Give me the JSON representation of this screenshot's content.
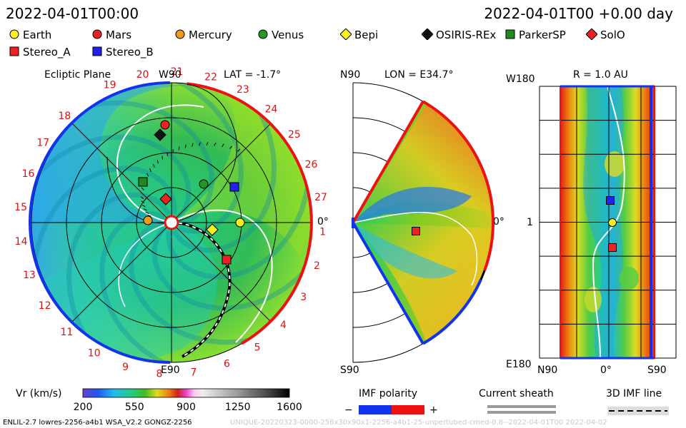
{
  "header": {
    "left_time": "2022-04-01T00:00",
    "right_time": "2022-04-01T00 +0.00 day"
  },
  "legend": {
    "items": [
      {
        "label": "Earth",
        "shape": "circle",
        "color": "#ffee22"
      },
      {
        "label": "Mars",
        "shape": "circle",
        "color": "#ee2222"
      },
      {
        "label": "Mercury",
        "shape": "circle",
        "color": "#ee9922"
      },
      {
        "label": "Venus",
        "shape": "circle",
        "color": "#229922"
      },
      {
        "label": "Bepi",
        "shape": "diamond",
        "color": "#ffee22"
      },
      {
        "label": "OSIRIS-REx",
        "shape": "diamond",
        "color": "#111111"
      },
      {
        "label": "ParkerSP",
        "shape": "square",
        "color": "#228822"
      },
      {
        "label": "SolO",
        "shape": "diamond",
        "color": "#ee2222"
      },
      {
        "label": "Stereo_A",
        "shape": "square",
        "color": "#ee2222"
      },
      {
        "label": "Stereo_B",
        "shape": "square",
        "color": "#2222ee"
      }
    ]
  },
  "panels": {
    "ecliptic": {
      "title": "Ecliptic Plane",
      "lat_label": "LAT = -1.7°",
      "top_label": "W90",
      "bottom_label": "E90",
      "right_label": "0°"
    },
    "meridional": {
      "lon_label": "LON = E34.7°",
      "top_label": "N90",
      "bottom_label": "S90",
      "right_label": "0°"
    },
    "radial": {
      "r_label": "R = 1.0 AU",
      "top_left_label": "W180",
      "bottom_left_label": "E180",
      "mid_left_label": "1",
      "bottom_labels": [
        "N90",
        "0°",
        "S90"
      ]
    }
  },
  "carrington_ticks": [
    "19",
    "20",
    "21",
    "22",
    "23",
    "24",
    "25",
    "26",
    "27",
    "1",
    "2",
    "3",
    "4",
    "5",
    "6",
    "7",
    "8",
    "9",
    "10",
    "11",
    "12",
    "13",
    "14",
    "15",
    "16",
    "17",
    "18"
  ],
  "colorbar": {
    "label": "Vr (km/s)",
    "ticks": [
      "200",
      "550",
      "900",
      "1250",
      "1600"
    ],
    "range": [
      200,
      1600
    ]
  },
  "imf_polarity": {
    "label": "IMF polarity",
    "minus": "−",
    "plus": "+",
    "colors": [
      "#1133ee",
      "#ee1111"
    ]
  },
  "current_sheath": {
    "label": "Current sheath"
  },
  "imf_line_3d": {
    "label": "3D IMF line"
  },
  "footer": {
    "left": "ENLIL-2.7 lowres-2256-a4b1 WSA_V2.2 GONGZ-2256",
    "right": "UNIQUE-20220323-0000-256x30x90x1-2256-a4b1-25-unpertubed-cmed-0.8--2022-04-01T00  2022-04-02"
  }
}
